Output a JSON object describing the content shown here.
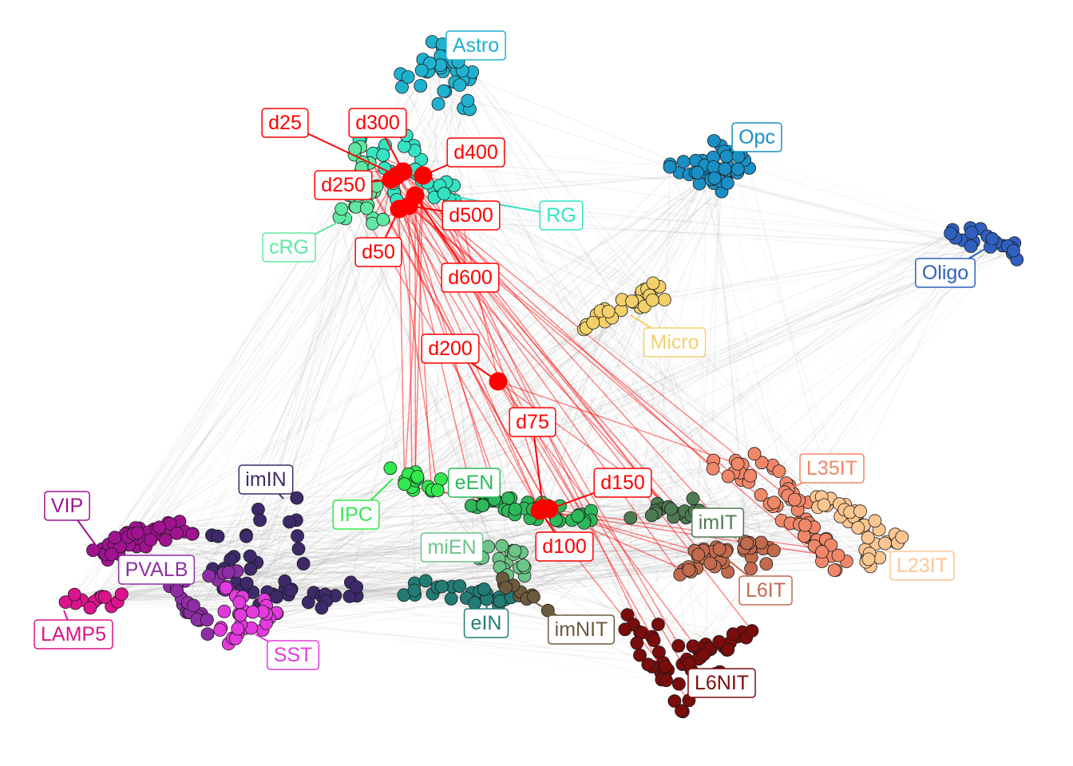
{
  "cell_types": [
    {
      "label": "Astro",
      "color": "#1fb2cf"
    },
    {
      "label": "Opc",
      "color": "#1a8fc6"
    },
    {
      "label": "Oligo",
      "color": "#2f5fbf"
    },
    {
      "label": "Micro",
      "color": "#f3d06a"
    },
    {
      "label": "RG",
      "color": "#33e3c2"
    },
    {
      "label": "cRG",
      "color": "#5fe8a2"
    },
    {
      "label": "IPC",
      "color": "#33e84e"
    },
    {
      "label": "eEN",
      "color": "#2db85a"
    },
    {
      "label": "miEN",
      "color": "#6cc489"
    },
    {
      "label": "eIN",
      "color": "#227b75"
    },
    {
      "label": "imNIT",
      "color": "#6b5a3c"
    },
    {
      "label": "imIN",
      "color": "#3d2a6a"
    },
    {
      "label": "VIP",
      "color": "#a01390"
    },
    {
      "label": "PVALB",
      "color": "#8e2ea6"
    },
    {
      "label": "LAMP5",
      "color": "#d9148c"
    },
    {
      "label": "SST",
      "color": "#e33ade"
    },
    {
      "label": "imIT",
      "color": "#4e7a52"
    },
    {
      "label": "L6IT",
      "color": "#c26a4d"
    },
    {
      "label": "L35IT",
      "color": "#f08769"
    },
    {
      "label": "L23IT",
      "color": "#fcc692"
    },
    {
      "label": "L6NIT",
      "color": "#7a0c0c"
    }
  ],
  "time_points": {
    "color": "#ff0000",
    "labels": [
      "d25",
      "d300",
      "d400",
      "d250",
      "d500",
      "d50",
      "d600",
      "d200",
      "d75",
      "d150",
      "d100"
    ]
  }
}
